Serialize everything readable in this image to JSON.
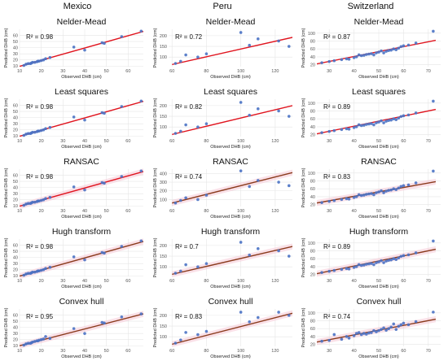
{
  "column_titles": [
    "Mexico",
    "Peru",
    "Switzerland"
  ],
  "x_label": "Observed DHB (cm)",
  "y_label": "Predicted DHB (cm)",
  "colors": {
    "point": "#4a72c4",
    "line_red": "#e0141e",
    "line_dark": "#8a3a1c",
    "band": "#f6c9d6",
    "grid": "#e6e6e6"
  },
  "chart_data": [
    {
      "type": "scatter",
      "country": "Mexico",
      "method": "Nelder-Mead",
      "annotation": "R² = 0.98",
      "xlim": [
        10,
        67
      ],
      "ylim": [
        9,
        70
      ],
      "xticks": [
        10,
        20,
        30,
        40,
        50,
        60
      ],
      "yticks": [
        10,
        20,
        30,
        40,
        50,
        60
      ],
      "x": [
        12,
        13,
        14,
        15,
        15.5,
        16,
        17,
        18,
        18.5,
        19,
        20,
        21,
        22,
        24,
        35,
        40,
        48,
        49,
        57,
        66
      ],
      "y": [
        11,
        13,
        14,
        14,
        15,
        16,
        16,
        17,
        18,
        18,
        19,
        20,
        22,
        24,
        41,
        36,
        48,
        47,
        58,
        67
      ],
      "fit": {
        "x": [
          10,
          67
        ],
        "y": [
          9.5,
          66.5
        ]
      },
      "line_color": "red"
    },
    {
      "type": "scatter",
      "country": "Peru",
      "method": "Nelder-Mead",
      "annotation": "R² = 0.72",
      "xlim": [
        58,
        130
      ],
      "ylim": [
        55,
        230
      ],
      "xticks": [
        60,
        80,
        100,
        120
      ],
      "yticks": [
        100,
        150,
        200
      ],
      "x": [
        62,
        65,
        68,
        75,
        80,
        100,
        105,
        110,
        122,
        128
      ],
      "y": [
        70,
        80,
        110,
        100,
        115,
        215,
        155,
        185,
        175,
        150
      ],
      "fit": {
        "x": [
          60,
          130
        ],
        "y": [
          65,
          192
        ]
      },
      "line_color": "red"
    },
    {
      "type": "scatter",
      "country": "Switzerland",
      "method": "Nelder-Mead",
      "annotation": "R² = 0.87",
      "xlim": [
        25,
        75
      ],
      "ylim": [
        15,
        110
      ],
      "xticks": [
        30,
        40,
        50,
        60,
        70
      ],
      "yticks": [
        20,
        40,
        60,
        80,
        100
      ],
      "x": [
        27,
        30,
        32,
        35,
        37,
        38,
        40,
        41,
        42,
        43,
        44,
        45,
        46,
        47,
        48,
        49,
        50,
        51,
        52,
        53,
        54,
        55,
        56,
        57,
        58,
        59,
        60,
        62,
        65,
        72
      ],
      "y": [
        25,
        28,
        30,
        33,
        35,
        34,
        38,
        40,
        45,
        43,
        44,
        46,
        47,
        48,
        45,
        50,
        52,
        55,
        50,
        54,
        56,
        57,
        60,
        58,
        62,
        66,
        68,
        70,
        75,
        105
      ],
      "fit": {
        "x": [
          25,
          73
        ],
        "y": [
          22,
          82
        ]
      },
      "line_color": "red"
    },
    {
      "type": "scatter",
      "country": "Mexico",
      "method": "Least squares",
      "annotation": "R² = 0.98",
      "xlim": [
        10,
        67
      ],
      "ylim": [
        9,
        70
      ],
      "xticks": [
        10,
        20,
        30,
        40,
        50,
        60
      ],
      "yticks": [
        10,
        20,
        30,
        40,
        50,
        60
      ],
      "x": [
        12,
        13,
        14,
        15,
        15.5,
        16,
        17,
        18,
        18.5,
        19,
        20,
        21,
        22,
        24,
        35,
        40,
        48,
        49,
        57,
        66
      ],
      "y": [
        11,
        13,
        14,
        14,
        15,
        16,
        16,
        17,
        18,
        18,
        19,
        20,
        22,
        24,
        41,
        36,
        48,
        47,
        58,
        67
      ],
      "fit": {
        "x": [
          10,
          67
        ],
        "y": [
          9.5,
          66.5
        ]
      },
      "line_color": "red"
    },
    {
      "type": "scatter",
      "country": "Peru",
      "method": "Least squares",
      "annotation": "R² = 0.82",
      "xlim": [
        58,
        130
      ],
      "ylim": [
        55,
        230
      ],
      "xticks": [
        60,
        80,
        100,
        120
      ],
      "yticks": [
        100,
        150,
        200
      ],
      "x": [
        62,
        65,
        68,
        75,
        80,
        100,
        105,
        110,
        122,
        128
      ],
      "y": [
        70,
        80,
        110,
        100,
        115,
        215,
        155,
        185,
        175,
        150
      ],
      "fit": {
        "x": [
          60,
          130
        ],
        "y": [
          65,
          200
        ]
      },
      "line_color": "red"
    },
    {
      "type": "scatter",
      "country": "Switzerland",
      "method": "Least squares",
      "annotation": "R² = 0.89",
      "xlim": [
        25,
        75
      ],
      "ylim": [
        15,
        110
      ],
      "xticks": [
        30,
        40,
        50,
        60,
        70
      ],
      "yticks": [
        20,
        40,
        60,
        80,
        100
      ],
      "x": [
        27,
        30,
        32,
        35,
        37,
        38,
        40,
        41,
        42,
        43,
        44,
        45,
        46,
        47,
        48,
        49,
        50,
        51,
        52,
        53,
        54,
        55,
        56,
        57,
        58,
        59,
        60,
        62,
        65,
        72
      ],
      "y": [
        25,
        28,
        30,
        33,
        35,
        34,
        38,
        40,
        45,
        43,
        44,
        46,
        47,
        48,
        45,
        50,
        52,
        55,
        50,
        54,
        56,
        57,
        60,
        58,
        62,
        66,
        68,
        70,
        75,
        105
      ],
      "fit": {
        "x": [
          25,
          73
        ],
        "y": [
          22,
          84
        ]
      },
      "line_color": "red"
    },
    {
      "type": "scatter",
      "country": "Mexico",
      "method": "RANSAC",
      "annotation": "R² = 0.98",
      "xlim": [
        10,
        67
      ],
      "ylim": [
        9,
        70
      ],
      "xticks": [
        10,
        20,
        30,
        40,
        50,
        60
      ],
      "yticks": [
        10,
        20,
        30,
        40,
        50,
        60
      ],
      "x": [
        12,
        13,
        14,
        15,
        15.5,
        16,
        17,
        18,
        18.5,
        19,
        20,
        21,
        22,
        24,
        35,
        40,
        48,
        49,
        57,
        66
      ],
      "y": [
        11,
        13,
        14,
        14,
        15,
        16,
        16,
        17,
        18,
        18,
        19,
        20,
        22,
        24,
        41,
        36,
        48,
        47,
        58,
        67
      ],
      "fit": {
        "x": [
          10,
          67
        ],
        "y": [
          9.5,
          66
        ]
      },
      "line_color": "red",
      "band": true
    },
    {
      "type": "scatter",
      "country": "Peru",
      "method": "RANSAC",
      "annotation": "R² = 0.74",
      "xlim": [
        58,
        130
      ],
      "ylim": [
        20,
        450
      ],
      "xticks": [
        60,
        80,
        100,
        120
      ],
      "yticks": [
        100,
        200,
        300,
        400
      ],
      "x": [
        62,
        65,
        68,
        75,
        80,
        100,
        105,
        110,
        122,
        128
      ],
      "y": [
        60,
        90,
        120,
        100,
        150,
        430,
        250,
        320,
        300,
        260
      ],
      "fit": {
        "x": [
          60,
          130
        ],
        "y": [
          60,
          410
        ]
      },
      "line_color": "dark",
      "band": true
    },
    {
      "type": "scatter",
      "country": "Switzerland",
      "method": "RANSAC",
      "annotation": "R² = 0.83",
      "xlim": [
        25,
        75
      ],
      "ylim": [
        15,
        110
      ],
      "xticks": [
        30,
        40,
        50,
        60,
        70
      ],
      "yticks": [
        20,
        40,
        60,
        80,
        100
      ],
      "x": [
        27,
        30,
        32,
        35,
        37,
        38,
        40,
        41,
        42,
        43,
        44,
        45,
        46,
        47,
        48,
        49,
        50,
        51,
        52,
        53,
        54,
        55,
        56,
        57,
        58,
        59,
        60,
        62,
        65,
        72
      ],
      "y": [
        25,
        28,
        30,
        33,
        35,
        34,
        38,
        40,
        45,
        43,
        44,
        46,
        47,
        48,
        45,
        50,
        52,
        55,
        50,
        54,
        56,
        57,
        60,
        58,
        62,
        66,
        68,
        70,
        75,
        105
      ],
      "fit": {
        "x": [
          25,
          73
        ],
        "y": [
          24,
          78
        ]
      },
      "line_color": "dark",
      "band": true
    },
    {
      "type": "scatter",
      "country": "Mexico",
      "method": "Hugh transform",
      "annotation": "R² = 0.98",
      "xlim": [
        10,
        67
      ],
      "ylim": [
        9,
        70
      ],
      "xticks": [
        10,
        20,
        30,
        40,
        50,
        60
      ],
      "yticks": [
        10,
        20,
        30,
        40,
        50,
        60
      ],
      "x": [
        12,
        13,
        14,
        15,
        15.5,
        16,
        17,
        18,
        18.5,
        19,
        20,
        21,
        22,
        24,
        35,
        40,
        48,
        49,
        57,
        66
      ],
      "y": [
        11,
        13,
        14,
        14,
        15,
        16,
        16,
        17,
        18,
        18,
        19,
        20,
        22,
        24,
        41,
        36,
        48,
        47,
        58,
        67
      ],
      "fit": {
        "x": [
          10,
          67
        ],
        "y": [
          9.5,
          66
        ]
      },
      "line_color": "dark",
      "band": true
    },
    {
      "type": "scatter",
      "country": "Peru",
      "method": "Hugh transform",
      "annotation": "R² = 0.7",
      "xlim": [
        58,
        130
      ],
      "ylim": [
        55,
        230
      ],
      "xticks": [
        60,
        80,
        100,
        120
      ],
      "yticks": [
        100,
        150,
        200
      ],
      "x": [
        62,
        65,
        68,
        75,
        80,
        100,
        105,
        110,
        122,
        128
      ],
      "y": [
        70,
        80,
        110,
        100,
        115,
        215,
        155,
        185,
        175,
        150
      ],
      "fit": {
        "x": [
          60,
          130
        ],
        "y": [
          65,
          195
        ]
      },
      "line_color": "dark",
      "band": true
    },
    {
      "type": "scatter",
      "country": "Switzerland",
      "method": "Hugh transform",
      "annotation": "R² = 0.89",
      "xlim": [
        25,
        75
      ],
      "ylim": [
        15,
        110
      ],
      "xticks": [
        30,
        40,
        50,
        60,
        70
      ],
      "yticks": [
        20,
        40,
        60,
        80,
        100
      ],
      "x": [
        27,
        30,
        32,
        35,
        37,
        38,
        40,
        41,
        42,
        43,
        44,
        45,
        46,
        47,
        48,
        49,
        50,
        51,
        52,
        53,
        54,
        55,
        56,
        57,
        58,
        59,
        60,
        62,
        65,
        72
      ],
      "y": [
        25,
        28,
        30,
        33,
        35,
        34,
        38,
        40,
        45,
        43,
        44,
        46,
        47,
        48,
        45,
        50,
        52,
        55,
        50,
        54,
        56,
        57,
        60,
        58,
        62,
        66,
        68,
        70,
        75,
        105
      ],
      "fit": {
        "x": [
          25,
          73
        ],
        "y": [
          22,
          84
        ]
      },
      "line_color": "dark",
      "band": true
    },
    {
      "type": "scatter",
      "country": "Mexico",
      "method": "Convex hull",
      "annotation": "R² = 0.95",
      "xlim": [
        10,
        67
      ],
      "ylim": [
        9,
        70
      ],
      "xticks": [
        10,
        20,
        30,
        40,
        50,
        60
      ],
      "yticks": [
        10,
        20,
        30,
        40,
        50,
        60
      ],
      "x": [
        12,
        13,
        14,
        15,
        15.5,
        16,
        17,
        18,
        18.5,
        19,
        20,
        21,
        22,
        24,
        35,
        40,
        48,
        49,
        57,
        66
      ],
      "y": [
        11,
        13,
        14,
        14,
        15,
        16,
        17,
        18,
        18,
        19,
        20,
        21,
        25,
        22,
        38,
        30,
        48,
        47,
        57,
        62
      ],
      "fit": {
        "x": [
          10,
          67
        ],
        "y": [
          10,
          62
        ]
      },
      "line_color": "dark",
      "band": true
    },
    {
      "type": "scatter",
      "country": "Peru",
      "method": "Convex hull",
      "annotation": "R² = 0.83",
      "xlim": [
        58,
        130
      ],
      "ylim": [
        55,
        230
      ],
      "xticks": [
        60,
        80,
        100,
        120
      ],
      "yticks": [
        100,
        150,
        200
      ],
      "x": [
        62,
        65,
        68,
        75,
        80,
        100,
        105,
        110,
        122,
        128
      ],
      "y": [
        70,
        85,
        120,
        110,
        125,
        215,
        170,
        190,
        215,
        200
      ],
      "fit": {
        "x": [
          60,
          130
        ],
        "y": [
          65,
          210
        ]
      },
      "line_color": "dark",
      "band": true
    },
    {
      "type": "scatter",
      "country": "Switzerland",
      "method": "Convex hull",
      "annotation": "R² = 0.74",
      "xlim": [
        25,
        75
      ],
      "ylim": [
        15,
        110
      ],
      "xticks": [
        30,
        40,
        50,
        60,
        70
      ],
      "yticks": [
        20,
        40,
        60,
        80,
        100
      ],
      "x": [
        27,
        30,
        32,
        35,
        37,
        38,
        40,
        41,
        42,
        43,
        44,
        45,
        46,
        47,
        48,
        49,
        50,
        51,
        52,
        53,
        54,
        55,
        56,
        57,
        58,
        59,
        60,
        62,
        65,
        72
      ],
      "y": [
        28,
        30,
        45,
        33,
        40,
        36,
        42,
        48,
        50,
        45,
        48,
        46,
        49,
        50,
        55,
        52,
        55,
        58,
        62,
        56,
        60,
        64,
        72,
        58,
        66,
        70,
        74,
        70,
        78,
        102
      ],
      "fit": {
        "x": [
          25,
          73
        ],
        "y": [
          26,
          84
        ]
      },
      "line_color": "dark",
      "band": true
    }
  ]
}
